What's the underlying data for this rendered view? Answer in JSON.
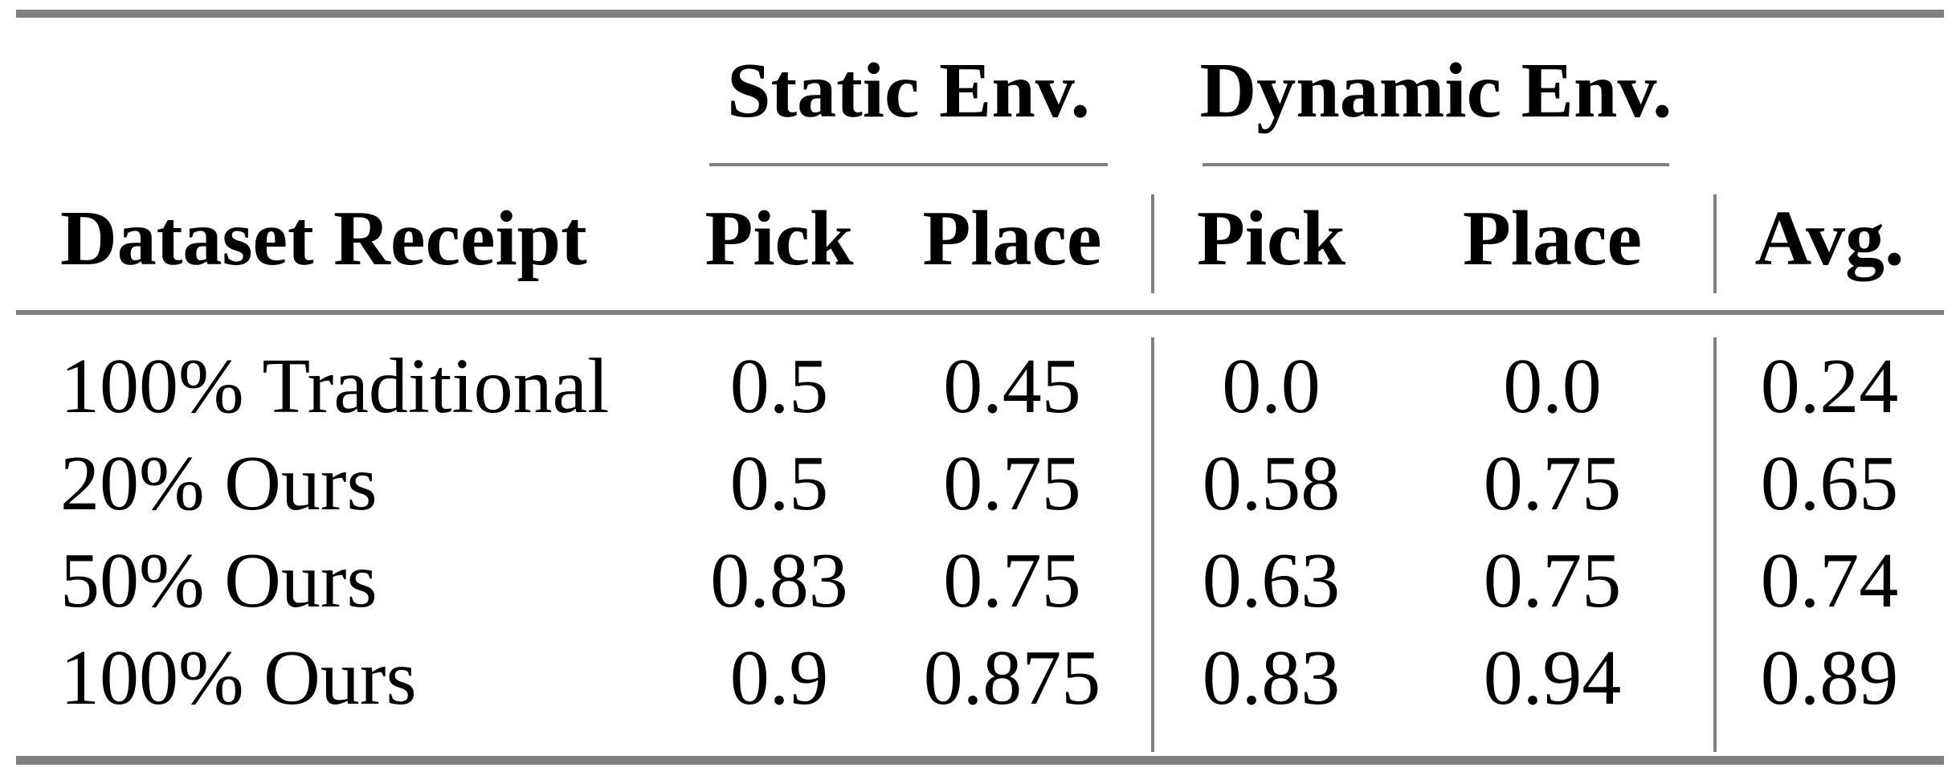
{
  "table": {
    "group_headers": {
      "static": "Static Env.",
      "dynamic": "Dynamic Env."
    },
    "columns": {
      "row_label": "Dataset Receipt",
      "static_pick": "Pick",
      "static_place": "Place",
      "dynamic_pick": "Pick",
      "dynamic_place": "Place",
      "avg": "Avg."
    },
    "rows": [
      {
        "label": "100% Traditional",
        "static_pick": "0.5",
        "static_place": "0.45",
        "dynamic_pick": "0.0",
        "dynamic_place": "0.0",
        "avg": "0.24"
      },
      {
        "label": "20% Ours",
        "static_pick": "0.5",
        "static_place": "0.75",
        "dynamic_pick": "0.58",
        "dynamic_place": "0.75",
        "avg": "0.65"
      },
      {
        "label": "50% Ours",
        "static_pick": "0.83",
        "static_place": "0.75",
        "dynamic_pick": "0.63",
        "dynamic_place": "0.75",
        "avg": "0.74"
      },
      {
        "label": "100% Ours",
        "static_pick": "0.9",
        "static_place": "0.875",
        "dynamic_pick": "0.83",
        "dynamic_place": "0.94",
        "avg": "0.89"
      }
    ],
    "colors": {
      "rule": "#808080",
      "text": "#000000",
      "background": "#ffffff"
    }
  },
  "chart_data": {
    "type": "table",
    "title": "",
    "column_groups": [
      {
        "label": "Static Env.",
        "columns": [
          "Pick",
          "Place"
        ]
      },
      {
        "label": "Dynamic Env.",
        "columns": [
          "Pick",
          "Place"
        ]
      }
    ],
    "columns": [
      "Dataset Receipt",
      "Static Env. Pick",
      "Static Env. Place",
      "Dynamic Env. Pick",
      "Dynamic Env. Place",
      "Avg."
    ],
    "categories": [
      "100% Traditional",
      "20% Ours",
      "50% Ours",
      "100% Ours"
    ],
    "series": [
      {
        "name": "Static Env. Pick",
        "values": [
          0.5,
          0.5,
          0.83,
          0.9
        ]
      },
      {
        "name": "Static Env. Place",
        "values": [
          0.45,
          0.75,
          0.75,
          0.875
        ]
      },
      {
        "name": "Dynamic Env. Pick",
        "values": [
          0.0,
          0.58,
          0.63,
          0.83
        ]
      },
      {
        "name": "Dynamic Env. Place",
        "values": [
          0.0,
          0.75,
          0.75,
          0.94
        ]
      },
      {
        "name": "Avg.",
        "values": [
          0.24,
          0.65,
          0.74,
          0.89
        ]
      }
    ]
  }
}
